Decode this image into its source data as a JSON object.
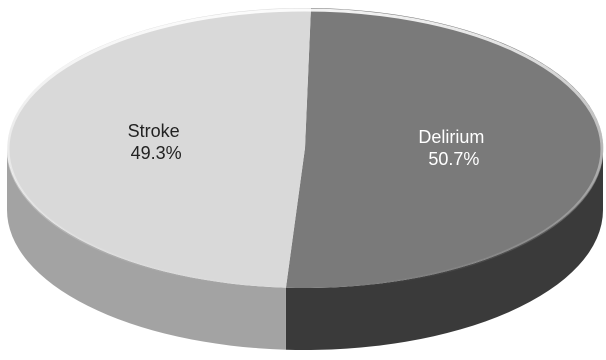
{
  "chart_data": {
    "type": "pie",
    "style": "3d",
    "slices": [
      {
        "label": "Delirium",
        "value": 50.7,
        "display_value": "50.7%",
        "top_color": "#7a7a7a",
        "side_color": "#3a3a3a",
        "label_color": "#ffffff"
      },
      {
        "label": "Stroke",
        "value": 49.3,
        "display_value": "49.3%",
        "top_color": "#d9d9d9",
        "side_color": "#a3a3a3",
        "label_color": "#222222"
      }
    ]
  }
}
